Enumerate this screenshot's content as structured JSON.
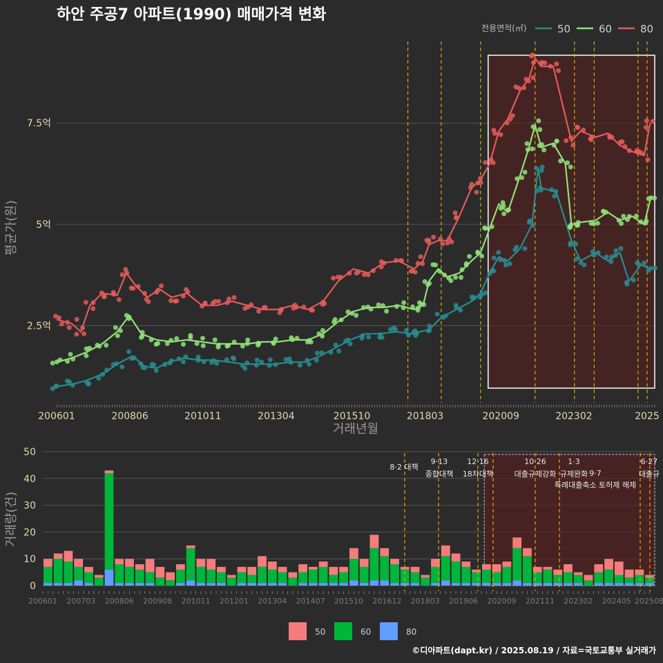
{
  "chart_data": [
    {
      "type": "line",
      "title": "하안 주공7 아파트(1990) 매매가격 변화",
      "xlabel": "거래년월",
      "ylabel": "평균가(원)",
      "x_ticks": [
        "200601",
        "200806",
        "201011",
        "201304",
        "201510",
        "201803",
        "202009",
        "202302",
        "2025"
      ],
      "y_ticks": [
        {
          "label": "2.5억",
          "value": 2.5
        },
        {
          "label": "5억",
          "value": 5
        },
        {
          "label": "7.5억",
          "value": 7.5
        }
      ],
      "ylim": [
        0.6,
        9.6
      ],
      "legend_title": "전용면적(㎡)",
      "legend_position": "top-right",
      "series": [
        {
          "name": "50",
          "color": "#2a8b8f",
          "points": [
            [
              2006.0,
              1.0
            ],
            [
              2006.5,
              1.05
            ],
            [
              2007.0,
              1.15
            ],
            [
              2007.5,
              1.3
            ],
            [
              2008.0,
              1.55
            ],
            [
              2008.5,
              1.75
            ],
            [
              2008.9,
              1.5
            ],
            [
              2009.3,
              1.45
            ],
            [
              2009.7,
              1.6
            ],
            [
              2010.2,
              1.7
            ],
            [
              2010.7,
              1.65
            ],
            [
              2011.2,
              1.65
            ],
            [
              2011.7,
              1.6
            ],
            [
              2012.2,
              1.55
            ],
            [
              2012.7,
              1.55
            ],
            [
              2013.2,
              1.55
            ],
            [
              2013.7,
              1.6
            ],
            [
              2014.2,
              1.6
            ],
            [
              2014.7,
              1.75
            ],
            [
              2015.2,
              1.95
            ],
            [
              2015.7,
              2.15
            ],
            [
              2016.2,
              2.3
            ],
            [
              2016.7,
              2.3
            ],
            [
              2017.2,
              2.35
            ],
            [
              2017.7,
              2.3
            ],
            [
              2018.0,
              2.35
            ],
            [
              2018.3,
              2.4
            ],
            [
              2018.7,
              2.7
            ],
            [
              2019.2,
              2.9
            ],
            [
              2019.7,
              3.1
            ],
            [
              2020.0,
              3.3
            ],
            [
              2020.3,
              3.8
            ],
            [
              2020.6,
              4.2
            ],
            [
              2020.9,
              4.1
            ],
            [
              2021.3,
              4.4
            ],
            [
              2021.7,
              5.0
            ],
            [
              2021.9,
              6.4
            ],
            [
              2022.0,
              5.9
            ],
            [
              2022.5,
              5.8
            ],
            [
              2023.0,
              4.6
            ],
            [
              2023.3,
              4.1
            ],
            [
              2023.8,
              4.3
            ],
            [
              2024.2,
              4.1
            ],
            [
              2024.6,
              4.3
            ],
            [
              2024.9,
              3.6
            ],
            [
              2025.3,
              4.0
            ],
            [
              2025.6,
              3.9
            ]
          ]
        },
        {
          "name": "60",
          "color": "#90e07a",
          "points": [
            [
              2006.0,
              1.6
            ],
            [
              2006.5,
              1.7
            ],
            [
              2007.0,
              1.85
            ],
            [
              2007.5,
              2.05
            ],
            [
              2008.0,
              2.35
            ],
            [
              2008.4,
              2.75
            ],
            [
              2008.8,
              2.3
            ],
            [
              2009.3,
              2.15
            ],
            [
              2009.8,
              2.1
            ],
            [
              2010.3,
              2.15
            ],
            [
              2010.8,
              2.1
            ],
            [
              2011.3,
              2.05
            ],
            [
              2011.8,
              2.05
            ],
            [
              2012.3,
              2.05
            ],
            [
              2012.8,
              2.1
            ],
            [
              2013.3,
              2.1
            ],
            [
              2013.8,
              2.15
            ],
            [
              2014.3,
              2.15
            ],
            [
              2014.8,
              2.3
            ],
            [
              2015.3,
              2.6
            ],
            [
              2015.8,
              2.85
            ],
            [
              2016.3,
              2.95
            ],
            [
              2016.8,
              2.95
            ],
            [
              2017.3,
              3.0
            ],
            [
              2017.8,
              2.9
            ],
            [
              2018.1,
              3.0
            ],
            [
              2018.3,
              3.6
            ],
            [
              2018.6,
              3.9
            ],
            [
              2018.9,
              3.7
            ],
            [
              2019.3,
              3.8
            ],
            [
              2019.7,
              4.1
            ],
            [
              2020.0,
              4.3
            ],
            [
              2020.3,
              4.9
            ],
            [
              2020.6,
              5.5
            ],
            [
              2020.9,
              5.3
            ],
            [
              2021.3,
              6.2
            ],
            [
              2021.6,
              6.9
            ],
            [
              2021.8,
              7.45
            ],
            [
              2022.0,
              6.9
            ],
            [
              2022.4,
              7.0
            ],
            [
              2022.8,
              6.5
            ],
            [
              2023.0,
              5.0
            ],
            [
              2023.3,
              5.05
            ],
            [
              2023.8,
              5.1
            ],
            [
              2024.2,
              5.3
            ],
            [
              2024.6,
              5.1
            ],
            [
              2025.0,
              5.2
            ],
            [
              2025.4,
              5.0
            ],
            [
              2025.6,
              5.6
            ]
          ]
        },
        {
          "name": "80",
          "color": "#e55a5a",
          "points": [
            [
              2006.0,
              2.65
            ],
            [
              2006.5,
              2.55
            ],
            [
              2006.8,
              2.35
            ],
            [
              2007.1,
              3.0
            ],
            [
              2007.5,
              3.3
            ],
            [
              2008.0,
              3.25
            ],
            [
              2008.3,
              3.8
            ],
            [
              2008.6,
              3.5
            ],
            [
              2009.0,
              3.2
            ],
            [
              2009.4,
              3.4
            ],
            [
              2009.8,
              3.2
            ],
            [
              2010.3,
              3.3
            ],
            [
              2010.8,
              3.0
            ],
            [
              2011.3,
              3.0
            ],
            [
              2011.8,
              3.1
            ],
            [
              2012.3,
              3.0
            ],
            [
              2012.8,
              2.9
            ],
            [
              2013.3,
              2.9
            ],
            [
              2013.8,
              3.0
            ],
            [
              2014.3,
              2.9
            ],
            [
              2014.8,
              3.1
            ],
            [
              2015.3,
              3.6
            ],
            [
              2015.8,
              3.9
            ],
            [
              2016.3,
              3.8
            ],
            [
              2016.8,
              4.05
            ],
            [
              2017.3,
              4.1
            ],
            [
              2017.8,
              3.9
            ],
            [
              2018.1,
              4.1
            ],
            [
              2018.3,
              4.5
            ],
            [
              2018.6,
              4.6
            ],
            [
              2018.9,
              4.6
            ],
            [
              2019.3,
              5.2
            ],
            [
              2019.7,
              5.9
            ],
            [
              2020.0,
              6.1
            ],
            [
              2020.3,
              6.5
            ],
            [
              2020.6,
              7.3
            ],
            [
              2020.9,
              7.6
            ],
            [
              2021.3,
              8.3
            ],
            [
              2021.6,
              8.6
            ],
            [
              2021.8,
              9.1
            ],
            [
              2022.0,
              8.9
            ],
            [
              2022.4,
              8.9
            ],
            [
              2023.0,
              7.05
            ],
            [
              2023.3,
              7.3
            ],
            [
              2023.8,
              7.15
            ],
            [
              2024.2,
              7.25
            ],
            [
              2024.6,
              6.95
            ],
            [
              2025.0,
              6.8
            ],
            [
              2025.4,
              6.7
            ],
            [
              2025.6,
              7.5
            ]
          ]
        }
      ],
      "highlight_range": [
        2020.25,
        2025.75
      ],
      "policy_lines": [
        2017.6,
        2018.7,
        2020.0,
        2021.8,
        2023.1,
        2023.75,
        2025.2,
        2025.5
      ]
    },
    {
      "type": "bar",
      "ylabel": "거래량(건)",
      "y_ticks": [
        0,
        10,
        20,
        30,
        40,
        50
      ],
      "ylim": [
        0,
        50
      ],
      "x_ticks": [
        "200601",
        "200703",
        "200806",
        "200908",
        "201011",
        "201201",
        "201304",
        "201407",
        "201510",
        "201612",
        "201803",
        "201906",
        "202009",
        "202111",
        "202302",
        "202405",
        "202508"
      ],
      "series": [
        {
          "name": "50",
          "color": "#f47c7c",
          "values": [
            3,
            2,
            4,
            3,
            2,
            1,
            1,
            2,
            3,
            2,
            5,
            4,
            3,
            2,
            1,
            3,
            4,
            2,
            1,
            2,
            3,
            4,
            3,
            2,
            2,
            3,
            1,
            2,
            3,
            2,
            4,
            3,
            5,
            3,
            2,
            1,
            2,
            1,
            3,
            4,
            3,
            2,
            1,
            2,
            3,
            2,
            4,
            3,
            2,
            1,
            2,
            3,
            1,
            2,
            3,
            4,
            5,
            3,
            2,
            1
          ]
        },
        {
          "name": "60",
          "color": "#00b53b",
          "values": [
            6,
            9,
            8,
            5,
            4,
            3,
            36,
            7,
            6,
            5,
            4,
            3,
            2,
            5,
            12,
            6,
            5,
            4,
            3,
            4,
            3,
            6,
            5,
            4,
            3,
            4,
            5,
            6,
            3,
            4,
            8,
            6,
            12,
            9,
            7,
            5,
            4,
            3,
            6,
            9,
            8,
            6,
            4,
            5,
            4,
            6,
            12,
            10,
            4,
            5,
            3,
            4,
            3,
            2,
            4,
            5,
            3,
            2,
            3,
            2
          ]
        },
        {
          "name": "80",
          "color": "#619cff",
          "values": [
            1,
            1,
            1,
            2,
            1,
            0,
            6,
            1,
            1,
            1,
            1,
            0,
            0,
            1,
            2,
            1,
            1,
            1,
            0,
            1,
            1,
            1,
            1,
            1,
            0,
            1,
            1,
            1,
            1,
            1,
            2,
            1,
            2,
            2,
            1,
            1,
            1,
            0,
            1,
            2,
            1,
            1,
            1,
            1,
            1,
            1,
            2,
            1,
            1,
            1,
            1,
            1,
            1,
            0,
            1,
            1,
            1,
            1,
            1,
            1
          ]
        }
      ],
      "annotations": [
        {
          "date": "8·2 대책",
          "label": "8·2 대책"
        },
        {
          "date": "9·13",
          "label": "종합대책"
        },
        {
          "date": "12·16",
          "label": "18차대책"
        },
        {
          "date": "10·26",
          "label": "대출규제강화"
        },
        {
          "date": "1·3",
          "label": "규제완화"
        },
        {
          "date": "9·7",
          "label": "특례대출축소 토허제 해제"
        },
        {
          "date": "6·27",
          "label": "대출규"
        }
      ],
      "legend": [
        "50",
        "60",
        "80"
      ]
    }
  ],
  "footer": "©디아파트(dapt.kr) / 2025.08.19 / 자료=국토교통부 실거래가"
}
